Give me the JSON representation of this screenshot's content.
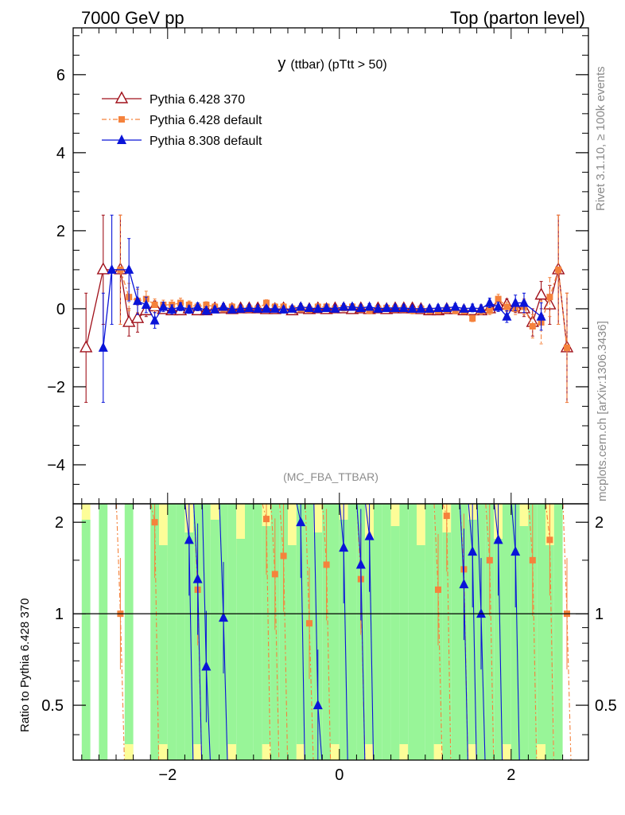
{
  "header": {
    "left": "7000 GeV pp",
    "right": "Top (parton level)"
  },
  "plot_title_main": "y",
  "plot_title_sub": "(ttbar)  (pTtt > 50)",
  "analysis_tag": "(MC_FBA_TTBAR)",
  "side_text": {
    "rivet": "Rivet 3.1.10, ≥ 100k events",
    "mcplots": "mcplots.cern.ch [arXiv:1306.3436]"
  },
  "colors": {
    "p6_370": "#a0101a",
    "p6_default": "#f5823c",
    "p8_default": "#0a14d8",
    "band_green": "#98f598",
    "band_yellow": "#fdfd98"
  },
  "chart_data": [
    {
      "type": "line",
      "panel": "main",
      "xlim": [
        -3.1,
        2.9
      ],
      "ylim": [
        -5,
        7.2
      ],
      "ytick_labels": [
        "−4",
        "−2",
        "0",
        "2",
        "4",
        "6"
      ],
      "yticks": [
        -4,
        -2,
        0,
        2,
        4,
        6
      ],
      "legend_position": "top-left",
      "series": [
        {
          "name": "Pythia 6.428 370",
          "marker": "open-triangle",
          "x": [
            -2.95,
            -2.75,
            -2.55,
            -2.45,
            -2.35,
            -2.25,
            -2.15,
            -2.05,
            -1.95,
            -1.85,
            -1.75,
            -1.65,
            -1.55,
            -1.45,
            -1.35,
            -1.25,
            -1.15,
            -1.05,
            -0.95,
            -0.85,
            -0.75,
            -0.65,
            -0.55,
            -0.45,
            -0.35,
            -0.25,
            -0.15,
            -0.05,
            0.05,
            0.15,
            0.25,
            0.35,
            0.45,
            0.55,
            0.65,
            0.75,
            0.85,
            0.95,
            1.05,
            1.15,
            1.25,
            1.35,
            1.45,
            1.55,
            1.65,
            1.75,
            1.85,
            1.95,
            2.05,
            2.15,
            2.25,
            2.35,
            2.45,
            2.55,
            2.65
          ],
          "y": [
            -1.0,
            1.0,
            1.0,
            -0.35,
            -0.25,
            -0.05,
            0.05,
            -0.02,
            -0.05,
            -0.05,
            0.0,
            -0.05,
            -0.05,
            0.0,
            0.0,
            -0.02,
            0.0,
            0.0,
            0.0,
            -0.02,
            -0.02,
            0.0,
            -0.05,
            0.0,
            -0.02,
            0.0,
            -0.02,
            0.0,
            0.0,
            -0.02,
            0.0,
            -0.02,
            0.0,
            -0.02,
            0.0,
            0.0,
            0.0,
            -0.02,
            -0.05,
            -0.05,
            -0.02,
            -0.02,
            -0.05,
            -0.05,
            -0.05,
            0.0,
            0.1,
            0.1,
            0.05,
            0.0,
            -0.35,
            0.35,
            0.1,
            1.0,
            -1.0
          ],
          "yerr": [
            1.4,
            1.4,
            1.4,
            0.35,
            0.35,
            0.15,
            0.15,
            0.1,
            0.1,
            0.1,
            0.1,
            0.1,
            0.1,
            0.08,
            0.08,
            0.08,
            0.08,
            0.08,
            0.08,
            0.08,
            0.08,
            0.08,
            0.08,
            0.08,
            0.08,
            0.08,
            0.08,
            0.08,
            0.08,
            0.08,
            0.08,
            0.08,
            0.08,
            0.08,
            0.08,
            0.08,
            0.08,
            0.08,
            0.08,
            0.08,
            0.08,
            0.08,
            0.08,
            0.08,
            0.1,
            0.1,
            0.1,
            0.15,
            0.15,
            0.2,
            0.35,
            0.35,
            0.5,
            1.4,
            1.4
          ]
        },
        {
          "name": "Pythia 6.428 default",
          "marker": "filled-square",
          "x": [
            -2.55,
            -2.45,
            -2.35,
            -2.25,
            -2.15,
            -2.05,
            -1.95,
            -1.85,
            -1.75,
            -1.65,
            -1.55,
            -1.45,
            -1.35,
            -1.25,
            -1.15,
            -1.05,
            -0.95,
            -0.85,
            -0.75,
            -0.65,
            -0.55,
            -0.45,
            -0.35,
            -0.25,
            -0.15,
            -0.05,
            0.05,
            0.15,
            0.25,
            0.35,
            0.45,
            0.55,
            0.65,
            0.75,
            0.85,
            0.95,
            1.05,
            1.15,
            1.25,
            1.35,
            1.45,
            1.55,
            1.65,
            1.75,
            1.85,
            1.95,
            2.05,
            2.15,
            2.25,
            2.35,
            2.45,
            2.55,
            2.65
          ],
          "y": [
            1.0,
            0.3,
            0.2,
            0.25,
            0.1,
            0.1,
            0.1,
            0.15,
            0.1,
            0.05,
            0.1,
            0.05,
            0.0,
            0.05,
            0.0,
            0.0,
            0.0,
            0.15,
            0.05,
            0.05,
            0.0,
            0.0,
            -0.02,
            0.05,
            0.05,
            0.0,
            0.02,
            0.05,
            0.0,
            -0.05,
            0.0,
            0.02,
            0.0,
            0.0,
            -0.05,
            0.0,
            -0.05,
            -0.05,
            -0.02,
            -0.05,
            -0.05,
            -0.25,
            -0.05,
            -0.05,
            0.25,
            0.05,
            0.0,
            0.05,
            -0.45,
            -0.35,
            0.3,
            1.0,
            -1.0
          ],
          "yerr": [
            1.4,
            0.35,
            0.3,
            0.2,
            0.15,
            0.12,
            0.12,
            0.12,
            0.1,
            0.1,
            0.08,
            0.08,
            0.08,
            0.08,
            0.08,
            0.08,
            0.08,
            0.08,
            0.08,
            0.08,
            0.08,
            0.08,
            0.08,
            0.08,
            0.08,
            0.08,
            0.08,
            0.08,
            0.08,
            0.08,
            0.08,
            0.08,
            0.08,
            0.08,
            0.08,
            0.08,
            0.08,
            0.08,
            0.08,
            0.08,
            0.08,
            0.08,
            0.1,
            0.1,
            0.12,
            0.12,
            0.15,
            0.2,
            0.3,
            0.55,
            0.5,
            1.4,
            1.4
          ]
        },
        {
          "name": "Pythia 8.308 default",
          "marker": "filled-triangle",
          "x": [
            -2.75,
            -2.65,
            -2.45,
            -2.35,
            -2.25,
            -2.15,
            -2.05,
            -1.95,
            -1.85,
            -1.75,
            -1.65,
            -1.55,
            -1.45,
            -1.35,
            -1.25,
            -1.15,
            -1.05,
            -0.95,
            -0.85,
            -0.75,
            -0.65,
            -0.55,
            -0.45,
            -0.35,
            -0.25,
            -0.15,
            -0.05,
            0.05,
            0.15,
            0.25,
            0.35,
            0.45,
            0.55,
            0.65,
            0.75,
            0.85,
            0.95,
            1.05,
            1.15,
            1.25,
            1.35,
            1.45,
            1.55,
            1.65,
            1.75,
            1.85,
            1.95,
            2.05,
            2.15,
            2.35
          ],
          "y": [
            -1.0,
            1.0,
            1.0,
            0.2,
            0.1,
            -0.3,
            0.05,
            -0.02,
            0.05,
            -0.02,
            0.05,
            -0.05,
            -0.02,
            0.05,
            -0.02,
            0.0,
            0.02,
            0.0,
            0.0,
            0.0,
            -0.02,
            0.0,
            0.05,
            0.02,
            0.0,
            0.02,
            0.0,
            0.05,
            0.05,
            0.02,
            0.05,
            0.0,
            0.02,
            0.02,
            0.02,
            0.0,
            0.0,
            0.0,
            0.02,
            0.02,
            0.05,
            0.0,
            0.02,
            0.0,
            0.15,
            0.05,
            -0.2,
            0.15,
            0.15,
            -0.2
          ],
          "yerr": [
            1.4,
            1.4,
            0.8,
            0.35,
            0.2,
            0.2,
            0.12,
            0.12,
            0.1,
            0.1,
            0.1,
            0.1,
            0.08,
            0.08,
            0.08,
            0.08,
            0.08,
            0.08,
            0.08,
            0.08,
            0.08,
            0.08,
            0.08,
            0.08,
            0.08,
            0.08,
            0.08,
            0.08,
            0.08,
            0.08,
            0.08,
            0.08,
            0.08,
            0.08,
            0.08,
            0.08,
            0.08,
            0.08,
            0.08,
            0.08,
            0.08,
            0.08,
            0.1,
            0.1,
            0.12,
            0.12,
            0.15,
            0.2,
            0.25,
            0.35
          ]
        }
      ]
    },
    {
      "type": "line",
      "panel": "ratio",
      "xlim": [
        -3.1,
        2.9
      ],
      "ylim": [
        0.33,
        2.3
      ],
      "ylabel": "Ratio to Pythia 6.428 370",
      "yticks": [
        0.5,
        1,
        2
      ],
      "ytick_labels": [
        "0.5",
        "1",
        "2"
      ],
      "xticks": [
        -2,
        0,
        2
      ],
      "xtick_labels": [
        "−2",
        "0",
        "2"
      ],
      "reference_line": 1,
      "series": [
        {
          "name": "Pythia 6.428 default",
          "x": [
            -2.55,
            -2.15,
            -1.65,
            -0.85,
            -0.75,
            -0.65,
            -0.35,
            -0.15,
            0.25,
            1.15,
            1.25,
            1.45,
            1.75,
            2.25,
            2.45,
            2.65
          ],
          "y": [
            1.0,
            2.0,
            1.2,
            2.05,
            1.35,
            1.55,
            0.93,
            1.45,
            1.3,
            1.2,
            2.1,
            1.4,
            1.5,
            1.5,
            1.75,
            1.0
          ]
        },
        {
          "name": "Pythia 8.308 default",
          "x": [
            -1.75,
            -1.65,
            -1.55,
            -1.35,
            -0.45,
            -0.25,
            0.05,
            0.25,
            0.35,
            1.45,
            1.55,
            1.65,
            1.85,
            2.05
          ],
          "y": [
            1.75,
            1.3,
            0.67,
            0.97,
            2.0,
            0.5,
            1.65,
            1.45,
            1.8,
            1.25,
            1.6,
            1.0,
            1.75,
            1.6
          ]
        }
      ]
    }
  ]
}
